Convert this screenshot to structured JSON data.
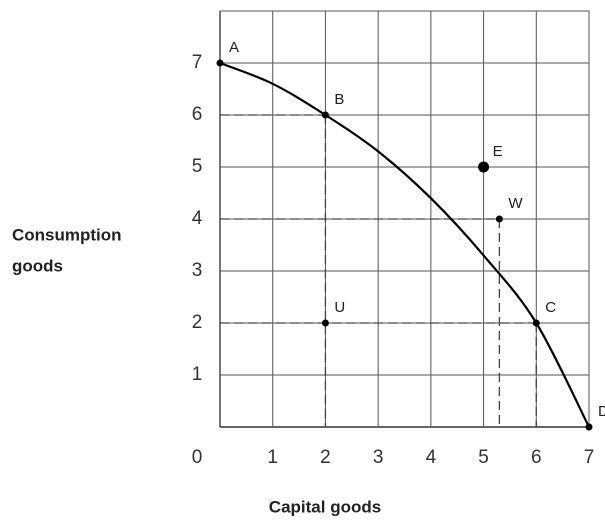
{
  "chart_data": {
    "type": "line",
    "xlabel": "Capital goods",
    "ylabel": [
      "Consumption",
      "goods"
    ],
    "xlim": [
      0,
      7
    ],
    "ylim": [
      0,
      8
    ],
    "xticks": [
      0,
      1,
      2,
      3,
      4,
      5,
      6,
      7
    ],
    "yticks": [
      1,
      2,
      3,
      4,
      5,
      6,
      7
    ],
    "grid": true,
    "color": "#000000",
    "curve": {
      "x": [
        0,
        1,
        2,
        3,
        4,
        5,
        6,
        7
      ],
      "y": [
        7,
        6.6,
        6,
        5.3,
        4.4,
        3.3,
        2,
        0
      ]
    },
    "points": [
      {
        "label": "A",
        "x": 0,
        "y": 7,
        "guides": false,
        "large": false
      },
      {
        "label": "B",
        "x": 2,
        "y": 6,
        "guides": true,
        "large": false
      },
      {
        "label": "E",
        "x": 5,
        "y": 5,
        "guides": false,
        "large": true
      },
      {
        "label": "W",
        "x": 5.3,
        "y": 4,
        "guides": true,
        "large": false
      },
      {
        "label": "U",
        "x": 2,
        "y": 2,
        "guides": false,
        "large": false
      },
      {
        "label": "C",
        "x": 6,
        "y": 2,
        "guides": true,
        "large": false
      },
      {
        "label": "D",
        "x": 7,
        "y": 0,
        "guides": false,
        "large": false
      }
    ]
  }
}
